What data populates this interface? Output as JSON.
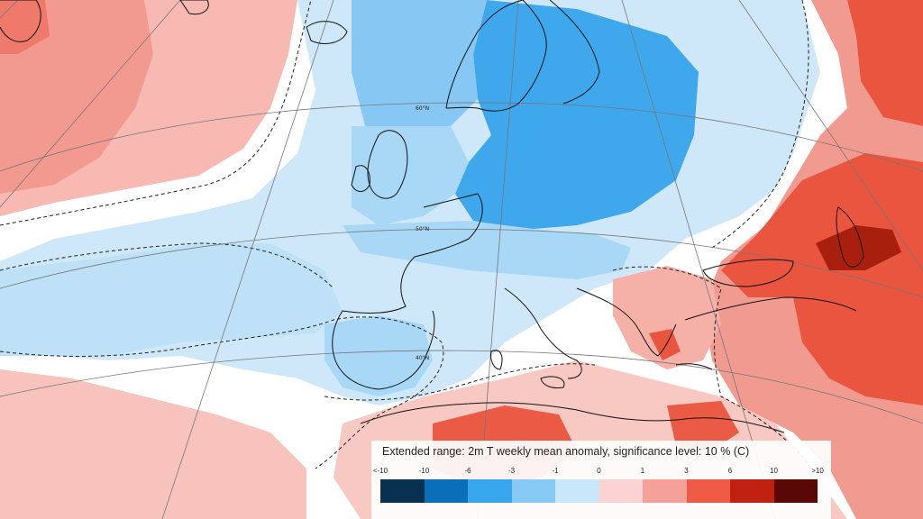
{
  "legend": {
    "title": "Extended range: 2m T weekly mean anomaly, significance level: 10 % (C)",
    "ticks": [
      "<-10",
      "-10",
      "-6",
      "-3",
      "-1",
      "0",
      "1",
      "3",
      "6",
      "10",
      ">10"
    ],
    "colors": [
      "#08304f",
      "#0a6fb8",
      "#38a6ec",
      "#86c9f4",
      "#c9e7fa",
      "#fcd3d0",
      "#f6a09a",
      "#ee5a44",
      "#c0200f",
      "#5a0805"
    ]
  },
  "graticule_labels": [
    "60°N",
    "50°N",
    "40°N"
  ],
  "colors": {
    "background": "#ffffff",
    "coast": "#111111",
    "contour": "#222222",
    "graticule": "#777777"
  }
}
